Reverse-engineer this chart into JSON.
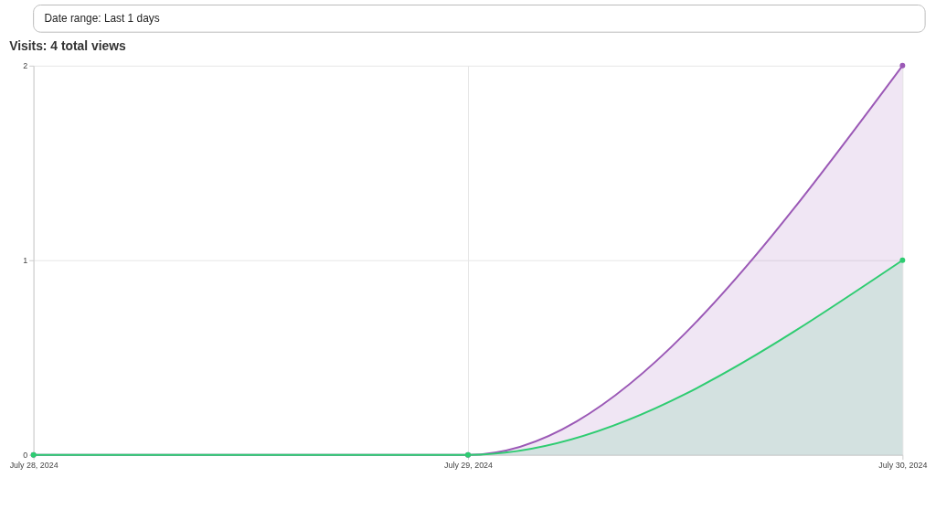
{
  "chart_data": {
    "type": "area",
    "title": "Visits: 4 total views",
    "annotations": [
      "Date range: Last 1 days"
    ],
    "x": [
      "2024-07-28",
      "2024-07-29",
      "2024-07-30"
    ],
    "series": [
      {
        "color": "#9b59b6",
        "values": [
          0,
          0,
          2
        ]
      },
      {
        "color": "#2ecc71",
        "values": [
          0,
          0,
          1
        ]
      }
    ],
    "xlim": [
      "2024-07-28",
      "2024-07-30"
    ],
    "xticks": [
      {
        "value": "2024-07-28",
        "label": "July 28, 2024"
      },
      {
        "value": "2024-07-29",
        "label": "July 29, 2024"
      },
      {
        "value": "2024-07-30",
        "label": "July 30, 2024"
      }
    ],
    "ylim": [
      0,
      2
    ],
    "yticks": [
      0,
      1,
      2
    ],
    "grid": true,
    "legend": false,
    "marker": "circle",
    "line_style": "solid"
  }
}
